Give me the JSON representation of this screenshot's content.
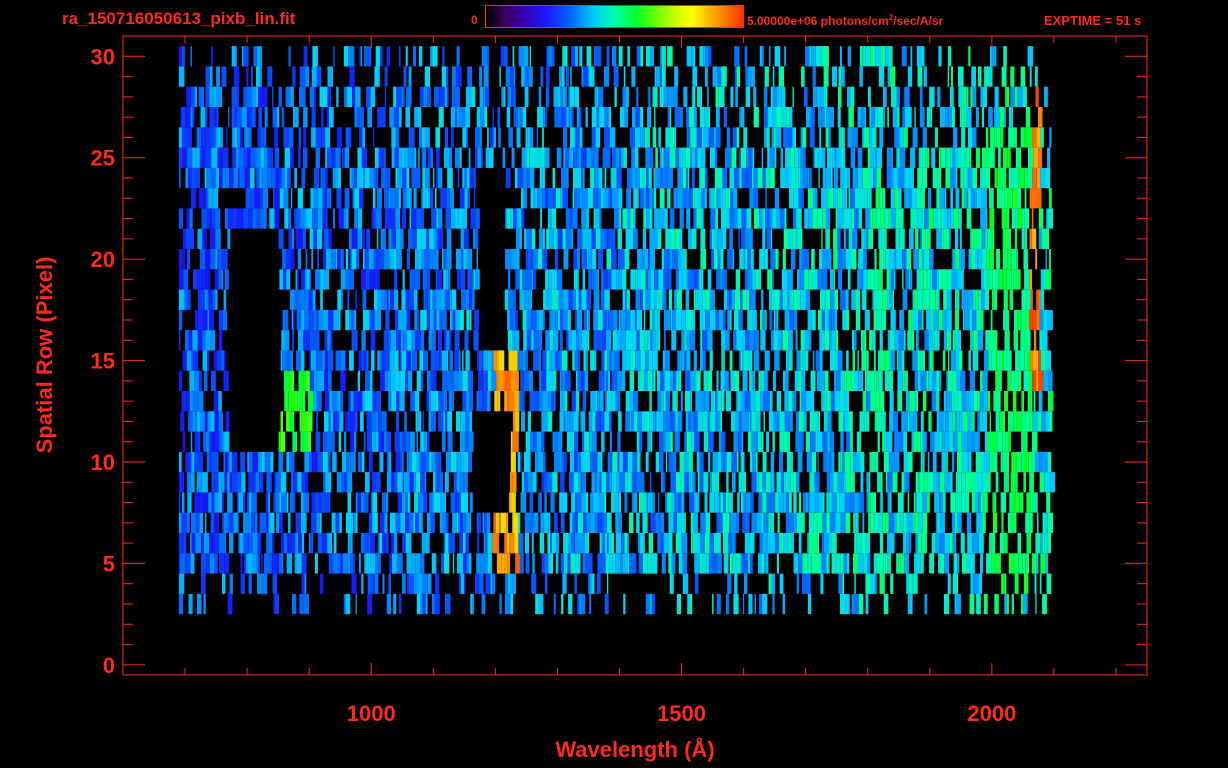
{
  "header": {
    "filename": "ra_150716050613_pixb_lin.fit",
    "colorbar_min": "0",
    "colorbar_max_prefix": "5.00000e+06 photons/cm",
    "colorbar_max_sup": "2",
    "colorbar_max_suffix": "/sec/A/sr",
    "exptime": "EXPTIME = 51 s"
  },
  "colors": {
    "axis": "#ff2a1a",
    "background": "#000000"
  },
  "chart_data": {
    "type": "heatmap",
    "title": "ra_150716050613_pixb_lin.fit",
    "xlabel": "Wavelength (Å)",
    "ylabel": "Spatial Row (Pixel)",
    "xlim": [
      600,
      2250
    ],
    "ylim": [
      -0.5,
      31
    ],
    "x_tick_labels": [
      1000,
      1500,
      2000
    ],
    "x_minor_step": 100,
    "y_tick_labels": [
      0,
      5,
      10,
      15,
      20,
      25,
      30
    ],
    "y_minor_step": 1,
    "colorbar": {
      "min": 0,
      "max": 5000000,
      "units": "photons/cm^2/sec/A/sr"
    },
    "grid": false,
    "data_extent": {
      "x": [
        690,
        2095
      ],
      "rows": [
        3,
        30
      ]
    },
    "features": [
      {
        "name": "bright line",
        "x": [
          1195,
          1235
        ],
        "rows": [
          5,
          15
        ],
        "level": 0.95
      },
      {
        "name": "curved feature",
        "x": [
          830,
          900
        ],
        "rows": [
          11,
          14
        ],
        "level": 0.7
      },
      {
        "name": "bright band",
        "x": [
          1800,
          1830
        ],
        "rows": [
          5,
          23
        ],
        "level": 0.6
      },
      {
        "name": "bright band",
        "x": [
          1990,
          2065
        ],
        "rows": [
          4,
          26
        ],
        "level": 0.65
      },
      {
        "name": "edge peak",
        "x": [
          2060,
          2075
        ],
        "rows": [
          14,
          28
        ],
        "level": 0.98
      }
    ],
    "gaps": [
      {
        "x": [
          770,
          850
        ],
        "rows": [
          11,
          21
        ]
      },
      {
        "x": [
          1170,
          1215
        ],
        "rows": [
          16,
          24
        ]
      },
      {
        "x": [
          1160,
          1220
        ],
        "rows": [
          8,
          12
        ]
      }
    ]
  }
}
